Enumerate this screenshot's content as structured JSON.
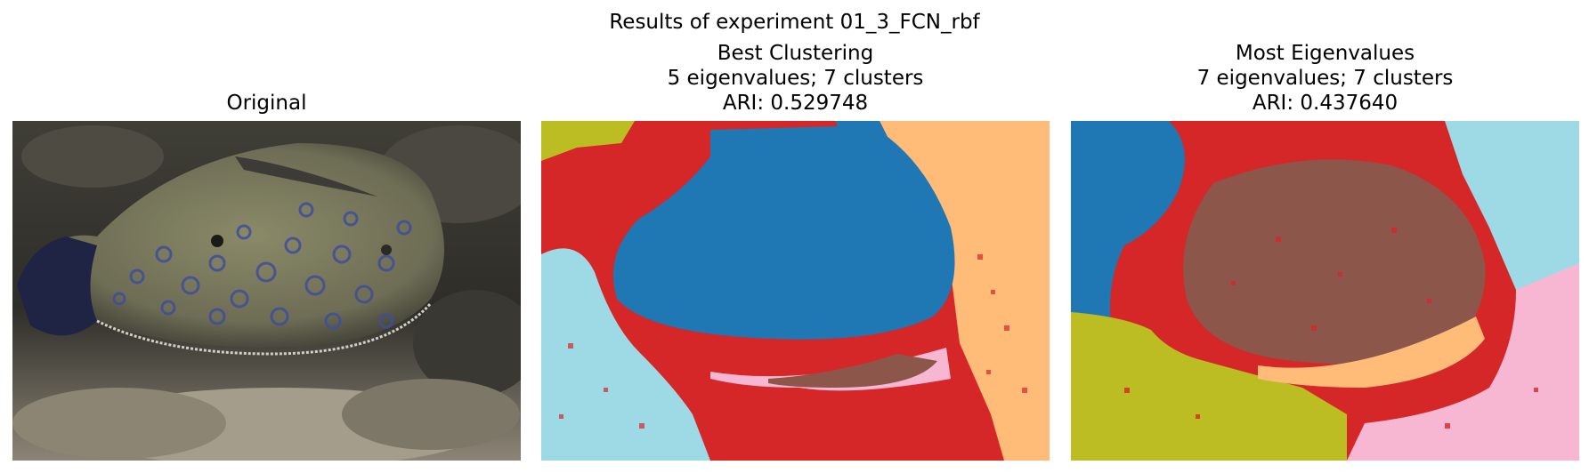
{
  "figure": {
    "title": "Results of experiment 01_3_FCN_rbf"
  },
  "panels": [
    {
      "title_lines": [
        "Original"
      ],
      "kind": "photo",
      "description_icon": "flatfish-photo"
    },
    {
      "title_lines": [
        "Best Clustering",
        "5 eigenvalues; 7 clusters",
        "ARI: 0.529748"
      ],
      "kind": "segmentation",
      "eigenvalues": 5,
      "clusters": 7,
      "ari": 0.529748
    },
    {
      "title_lines": [
        "Most Eigenvalues",
        "7 eigenvalues; 7 clusters",
        "ARI: 0.437640"
      ],
      "kind": "segmentation",
      "eigenvalues": 7,
      "clusters": 7,
      "ari": 0.43764
    }
  ],
  "colors": {
    "blue": "#1f77b4",
    "red": "#d62728",
    "light_blue": "#9edae5",
    "olive": "#bcbd22",
    "orange": "#ffbb78",
    "brown": "#8c564b",
    "pink": "#f7b6d2"
  }
}
